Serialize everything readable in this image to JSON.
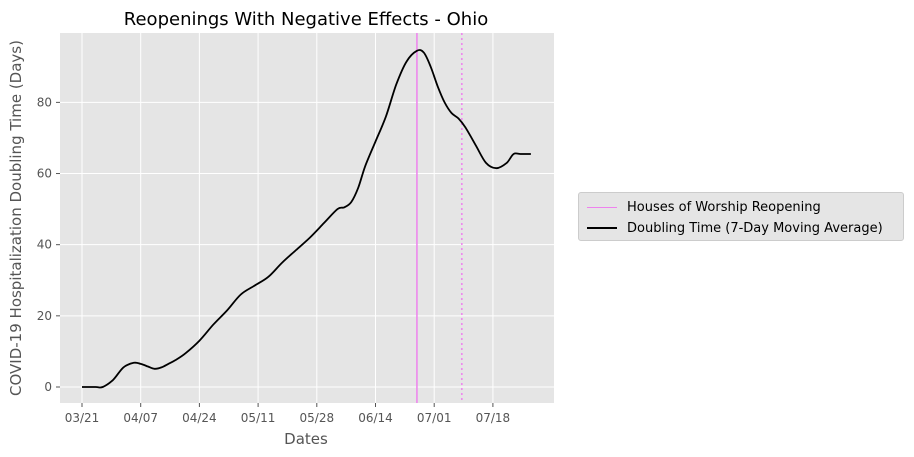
{
  "chart_data": {
    "type": "line",
    "title": "Reopenings With Negative Effects - Ohio",
    "xlabel": "Dates",
    "ylabel": "COVID-19 Hospitalization Doubling Time (Days)",
    "x_tick_labels": [
      "03/21",
      "04/07",
      "04/24",
      "05/11",
      "05/28",
      "06/14",
      "07/01",
      "07/18"
    ],
    "y_ticks": [
      0,
      20,
      40,
      60,
      80
    ],
    "ylim": [
      -4.5,
      99.5
    ],
    "grid": true,
    "legend_position": "right",
    "series": [
      {
        "name": "Doubling Time (7-Day Moving Average)",
        "color": "#000000",
        "x": [
          "2020-03-21",
          "2020-03-25",
          "2020-03-27",
          "2020-03-30",
          "2020-04-02",
          "2020-04-05",
          "2020-04-07",
          "2020-04-09",
          "2020-04-11",
          "2020-04-13",
          "2020-04-15",
          "2020-04-17",
          "2020-04-20",
          "2020-04-24",
          "2020-04-28",
          "2020-05-02",
          "2020-05-06",
          "2020-05-10",
          "2020-05-14",
          "2020-05-18",
          "2020-05-22",
          "2020-05-26",
          "2020-05-30",
          "2020-06-03",
          "2020-06-05",
          "2020-06-07",
          "2020-06-09",
          "2020-06-11",
          "2020-06-14",
          "2020-06-17",
          "2020-06-20",
          "2020-06-23",
          "2020-06-26",
          "2020-06-28",
          "2020-06-30",
          "2020-07-02",
          "2020-07-04",
          "2020-07-06",
          "2020-07-08",
          "2020-07-10",
          "2020-07-13",
          "2020-07-16",
          "2020-07-19",
          "2020-07-22",
          "2020-07-24",
          "2020-07-26",
          "2020-07-29"
        ],
        "values": [
          0,
          0,
          0,
          2,
          5.5,
          6.8,
          6.5,
          5.8,
          5.1,
          5.5,
          6.5,
          7.5,
          9.5,
          13,
          17.5,
          21.5,
          26,
          28.5,
          31,
          35,
          38.5,
          42,
          46,
          50,
          50.5,
          52,
          56,
          62,
          69,
          76,
          85,
          91.5,
          94.5,
          94,
          90,
          84.5,
          80,
          77,
          75.5,
          73,
          68,
          63,
          61.5,
          63,
          65.5,
          65.5,
          65.5
        ]
      }
    ],
    "reference_lines": [
      {
        "name": "Houses of Worship Reopening",
        "x": "2020-06-26",
        "style": "solid",
        "color": "#ee82ee"
      },
      {
        "x": "2020-07-09",
        "style": "dotted",
        "color": "#ee82ee"
      }
    ]
  }
}
